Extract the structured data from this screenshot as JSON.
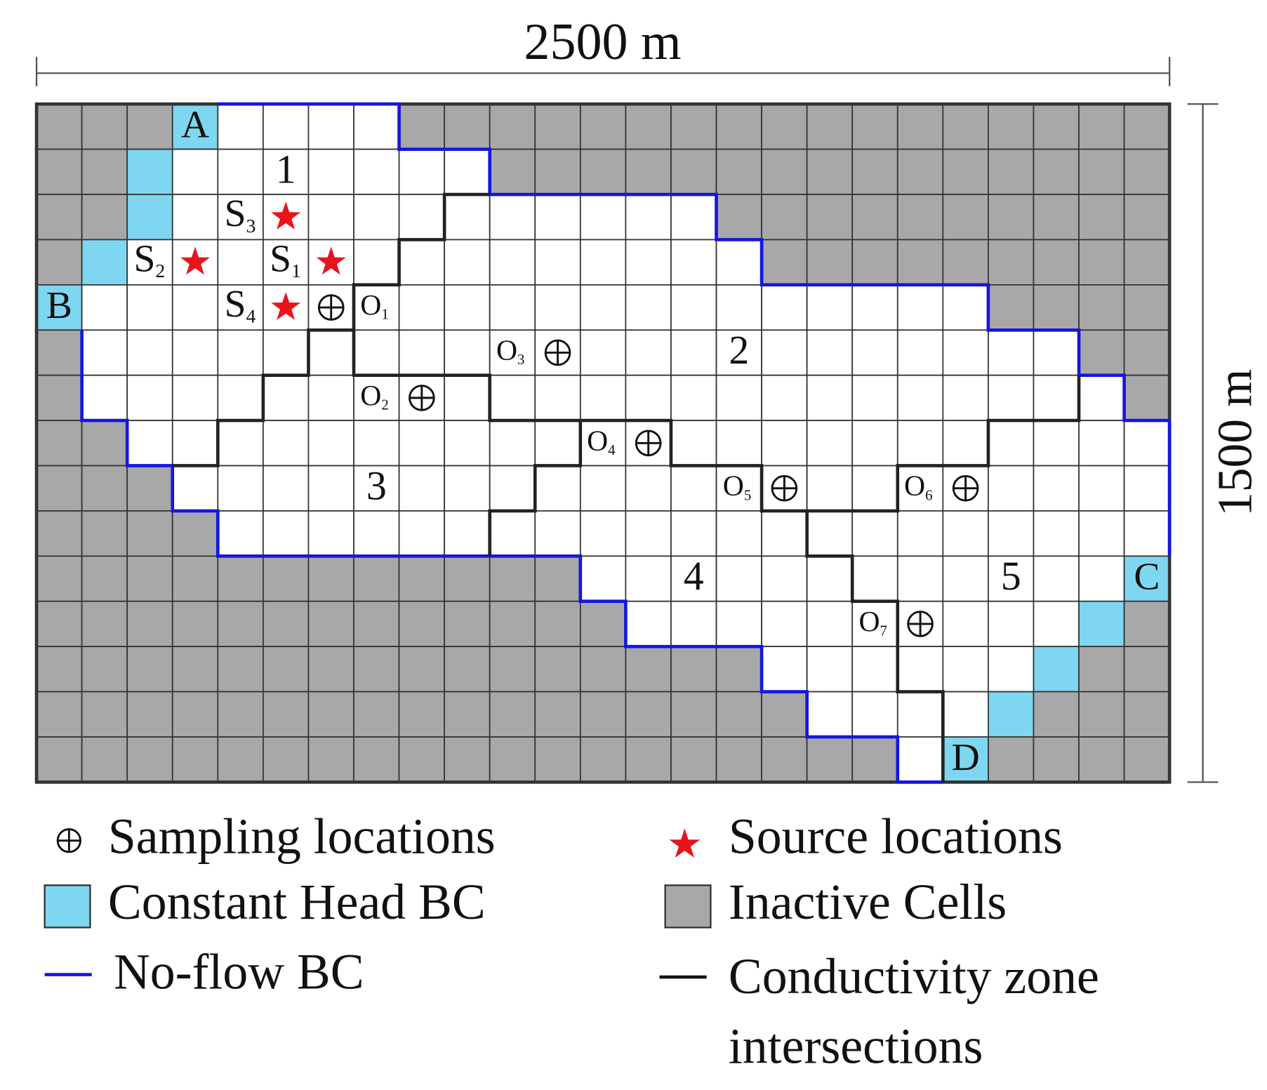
{
  "dimensions": {
    "width_label": "2500 m",
    "height_label": "1500 m"
  },
  "zones": [
    {
      "label": "1"
    },
    {
      "label": "2"
    },
    {
      "label": "3"
    },
    {
      "label": "4"
    },
    {
      "label": "5"
    }
  ],
  "boundaries": [
    {
      "label": "A"
    },
    {
      "label": "B"
    },
    {
      "label": "C"
    },
    {
      "label": "D"
    }
  ],
  "sources": [
    {
      "label": "S",
      "sub": "1"
    },
    {
      "label": "S",
      "sub": "2"
    },
    {
      "label": "S",
      "sub": "3"
    },
    {
      "label": "S",
      "sub": "4"
    }
  ],
  "samplings": [
    {
      "label": "O",
      "sub": "1"
    },
    {
      "label": "O",
      "sub": "2"
    },
    {
      "label": "O",
      "sub": "3"
    },
    {
      "label": "O",
      "sub": "4"
    },
    {
      "label": "O",
      "sub": "5"
    },
    {
      "label": "O",
      "sub": "6"
    },
    {
      "label": "O",
      "sub": "7"
    }
  ],
  "legend": {
    "sampling": "Sampling locations",
    "source": "Source locations",
    "constant_head": "Constant Head BC",
    "inactive": "Inactive Cells",
    "no_flow": "No-flow BC",
    "conductivity": "Conductivity zone intersections"
  }
}
